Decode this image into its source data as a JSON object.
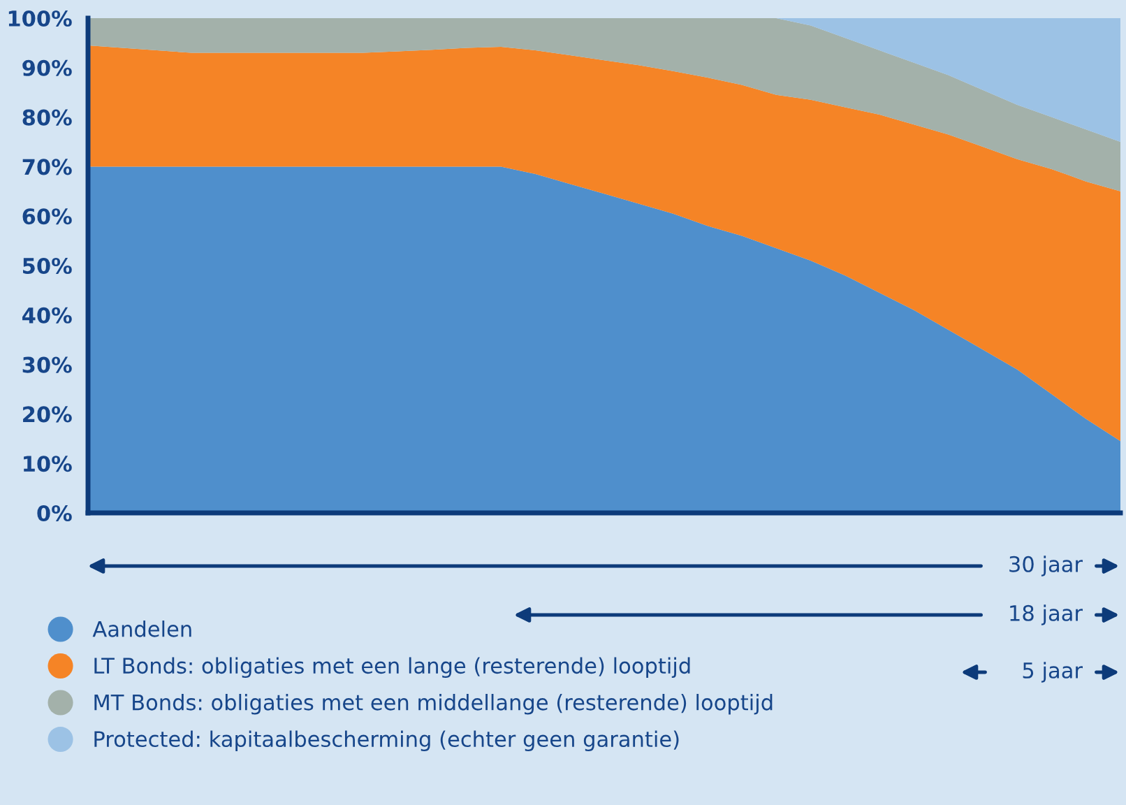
{
  "chart_data": {
    "type": "area",
    "stacked": true,
    "tick_labels": "y",
    "grid": false,
    "legend": "bottom left",
    "categories": [
      null,
      null,
      null,
      null,
      null,
      null,
      null,
      null,
      null,
      null,
      null,
      null,
      null,
      null,
      null,
      null,
      null,
      null,
      null,
      null,
      null,
      null,
      null,
      null,
      null,
      null,
      null,
      null,
      null,
      null,
      null
    ],
    "series": [
      {
        "name": "Aandelen",
        "color": "#4f8fcc",
        "values": [
          70,
          70,
          70,
          70,
          70,
          70,
          70,
          70,
          70,
          70,
          70,
          70,
          70,
          68.5,
          66.5,
          64.5,
          62.5,
          60.5,
          58,
          56,
          53.5,
          51,
          48,
          44.5,
          41,
          37,
          33,
          29,
          24,
          19,
          14.5
        ]
      },
      {
        "name": "LT Bonds: obligaties met een lange (resterende) looptijd",
        "color": "#f58426",
        "values": [
          24.5,
          24,
          23.5,
          23,
          23,
          23,
          23,
          23,
          23,
          23.3,
          23.6,
          24,
          24.2,
          25,
          26,
          27,
          28,
          28.8,
          30,
          30.5,
          31,
          32.5,
          34,
          36,
          37.5,
          39.5,
          41,
          42.5,
          45.5,
          48,
          50.5
        ]
      },
      {
        "name": "MT Bonds: obligaties met een middellange (resterende) looptijd",
        "color": "#a3b1aa",
        "values": [
          5.5,
          6,
          6.5,
          7,
          7,
          7,
          7,
          7,
          7,
          6.7,
          6.4,
          6,
          5.8,
          6.5,
          7.5,
          8.5,
          9.5,
          10.7,
          12,
          13.5,
          15.5,
          15,
          14,
          13,
          12.5,
          12,
          11.5,
          11,
          10.5,
          10.5,
          10
        ]
      },
      {
        "name": "Protected: kapitaalbescherming (echter geen garantie)",
        "color": "#9cc2e5",
        "values": [
          0,
          0,
          0,
          0,
          0,
          0,
          0,
          0,
          0,
          0,
          0,
          0,
          0,
          0,
          0,
          0,
          0,
          0,
          0,
          0,
          0,
          1.5,
          4,
          6.5,
          9,
          11.5,
          14.5,
          17.5,
          20,
          22.5,
          25
        ]
      }
    ],
    "ylim": [
      0,
      100
    ],
    "yticks": [
      {
        "value": 0,
        "label": "0%"
      },
      {
        "value": 10,
        "label": "10%"
      },
      {
        "value": 20,
        "label": "20%"
      },
      {
        "value": 30,
        "label": "30%"
      },
      {
        "value": 40,
        "label": "40%"
      },
      {
        "value": 50,
        "label": "50%"
      },
      {
        "value": 60,
        "label": "60%"
      },
      {
        "value": 70,
        "label": "70%"
      },
      {
        "value": 80,
        "label": "80%"
      },
      {
        "value": 90,
        "label": "90%"
      },
      {
        "value": 100,
        "label": "100%"
      }
    ],
    "annotations": [
      "30 jaar",
      "18 jaar",
      "5 jaar"
    ]
  }
}
